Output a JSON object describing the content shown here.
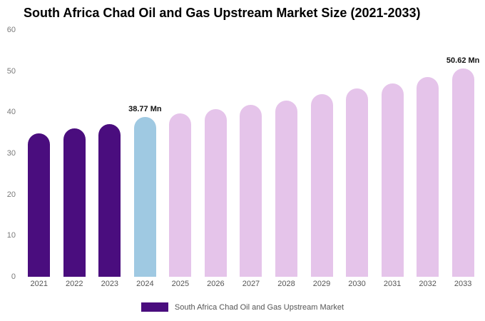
{
  "title": "South Africa Chad Oil and Gas Upstream Market Size (2021-2033)",
  "legend": {
    "label": "South Africa Chad Oil and Gas Upstream Market",
    "color": "#4a0d7e"
  },
  "colors": {
    "historical": "#4a0d7e",
    "current_year": "#9fc9e2",
    "forecast": "#e5c4ea"
  },
  "chart_data": {
    "type": "bar",
    "title": "South Africa Chad Oil and Gas Upstream Market Size (2021-2033)",
    "xlabel": "",
    "ylabel": "",
    "ylim": [
      0,
      60
    ],
    "yticks": [
      0,
      10,
      20,
      30,
      40,
      50,
      60
    ],
    "grid": false,
    "legend_position": "bottom-center",
    "categories": [
      "2021",
      "2022",
      "2023",
      "2024",
      "2025",
      "2026",
      "2027",
      "2028",
      "2029",
      "2030",
      "2031",
      "2032",
      "2033"
    ],
    "values": [
      34.9,
      36.1,
      37.1,
      38.77,
      39.7,
      40.7,
      41.8,
      42.9,
      44.4,
      45.8,
      47.0,
      48.5,
      50.62
    ],
    "bar_colors": [
      "#4a0d7e",
      "#4a0d7e",
      "#4a0d7e",
      "#9fc9e2",
      "#e5c4ea",
      "#e5c4ea",
      "#e5c4ea",
      "#e5c4ea",
      "#e5c4ea",
      "#e5c4ea",
      "#e5c4ea",
      "#e5c4ea",
      "#e5c4ea"
    ],
    "annotations": [
      {
        "category": "2024",
        "text": "38.77 Mn"
      },
      {
        "category": "2033",
        "text": "50.62 Mn"
      }
    ]
  }
}
